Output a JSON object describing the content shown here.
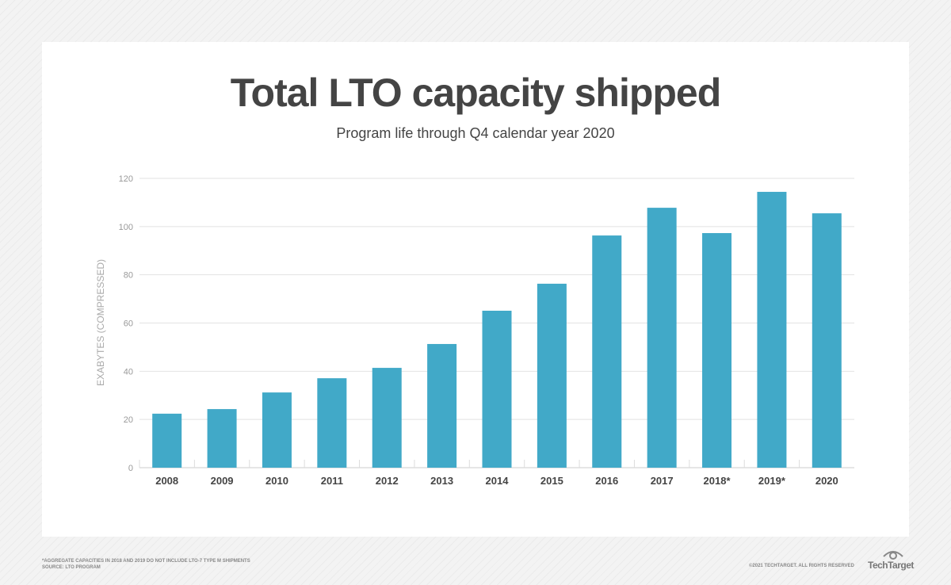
{
  "chart_data": {
    "type": "bar",
    "title": "Total LTO capacity shipped",
    "subtitle": "Program life through Q4 calendar year 2020",
    "xlabel": "",
    "ylabel": "EXABYTES (COMPRESSED)",
    "ylim": [
      0,
      120
    ],
    "yticks": [
      0,
      20,
      40,
      60,
      80,
      100,
      120
    ],
    "grid": true,
    "categories": [
      "2008",
      "2009",
      "2010",
      "2011",
      "2012",
      "2013",
      "2014",
      "2015",
      "2016",
      "2017",
      "2018*",
      "2019*",
      "2020"
    ],
    "values": [
      22.4,
      24.3,
      31.2,
      37.1,
      41.4,
      51.3,
      65.1,
      76.3,
      96.3,
      107.8,
      97.3,
      114.4,
      105.5
    ],
    "bar_color": "#41a9c8"
  },
  "footer": {
    "note": "*AGGREGATE CAPACITIES IN 2018 AND 2019 DO NOT INCLUDE LTO-7 TYPE M SHIPMENTS",
    "source": "SOURCE: LTO PROGRAM",
    "copyright": "©2021 TECHTARGET. ALL RIGHTS RESERVED",
    "logo": "TechTarget"
  }
}
